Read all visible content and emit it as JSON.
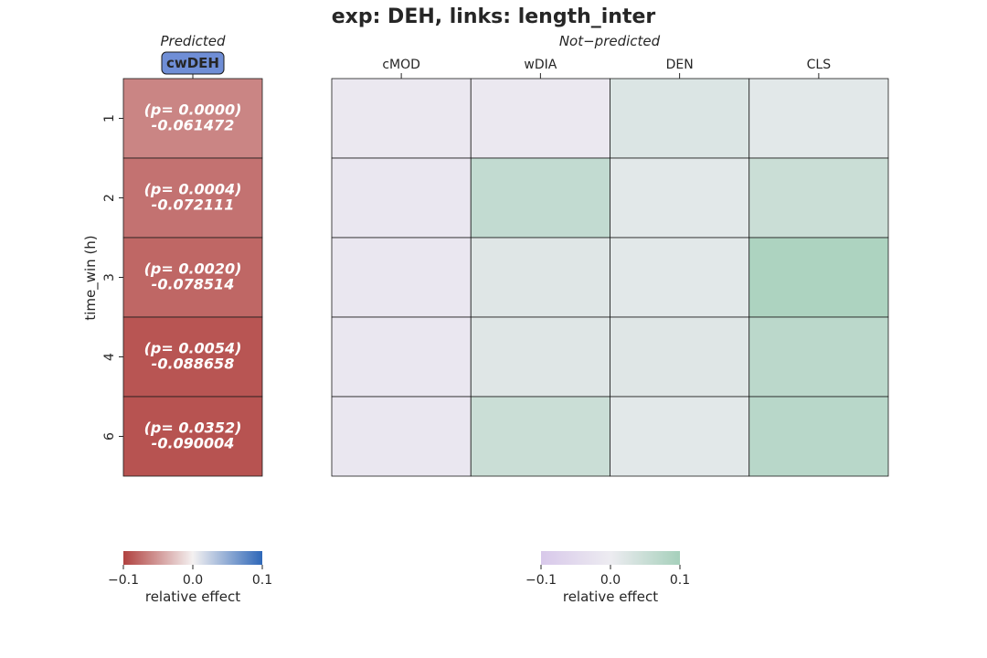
{
  "chart_data": {
    "type": "heatmap",
    "title": "exp: DEH, links: length_inter",
    "ylabel": "time_win (h)",
    "rows": [
      "1",
      "2",
      "3",
      "4",
      "6"
    ],
    "predicted": {
      "header": "Predicted",
      "columns": [
        "cwDEH"
      ],
      "values": [
        -0.061472,
        -0.072111,
        -0.078514,
        -0.088658,
        -0.090004
      ],
      "cell_labels": [
        [
          "(p= 0.0000)",
          "-0.061472"
        ],
        [
          "(p= 0.0004)",
          "-0.072111"
        ],
        [
          "(p= 0.0020)",
          "-0.078514"
        ],
        [
          "(p= 0.0054)",
          "-0.088658"
        ],
        [
          "(p= 0.0352)",
          "-0.090004"
        ]
      ],
      "colorbar": {
        "label": "relative effect",
        "range": [
          -0.1,
          0.1
        ],
        "ticks": [
          "−0.1",
          "0.0",
          "0.1"
        ],
        "colors": [
          "#b0413f",
          "#f4f1f1",
          "#2e67b8"
        ]
      },
      "tag_color": "#6f8ed6"
    },
    "not_predicted": {
      "header": "Not−predicted",
      "columns": [
        "cMOD",
        "wDIA",
        "DEN",
        "CLS"
      ],
      "values": [
        [
          -0.01,
          -0.01,
          0.025,
          0.015
        ],
        [
          -0.015,
          0.06,
          0.015,
          0.05
        ],
        [
          -0.015,
          0.02,
          0.015,
          0.09
        ],
        [
          -0.015,
          0.02,
          0.02,
          0.07
        ],
        [
          -0.015,
          0.05,
          0.015,
          0.075
        ]
      ],
      "colorbar": {
        "label": "relative effect",
        "range": [
          -0.1,
          0.1
        ],
        "ticks": [
          "−0.1",
          "0.0",
          "0.1"
        ],
        "colors": [
          "#d8c8ea",
          "#edecf1",
          "#a6d0bb"
        ]
      }
    }
  }
}
